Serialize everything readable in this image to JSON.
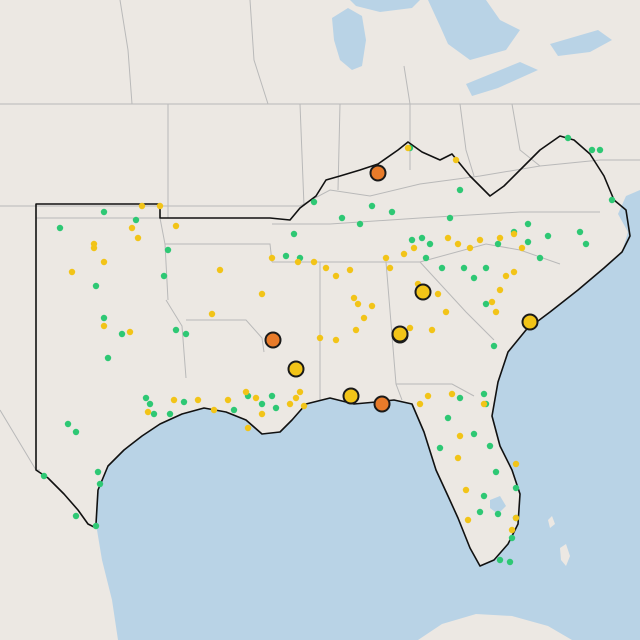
{
  "map": {
    "colors": {
      "land": "#ece8e3",
      "water": "#b9d3e6",
      "state_border": "#b9b9b9",
      "region_outline": "#111111",
      "marker_green": "#2ec874",
      "marker_yellow": "#f2c418",
      "marker_orange": "#e87b2a",
      "marker_stroke": "#1a1a1a",
      "city_gray": "#bdbdbd"
    },
    "legend": null,
    "markers": {
      "large_yellow_count": 6,
      "large_orange_count": 3
    }
  }
}
